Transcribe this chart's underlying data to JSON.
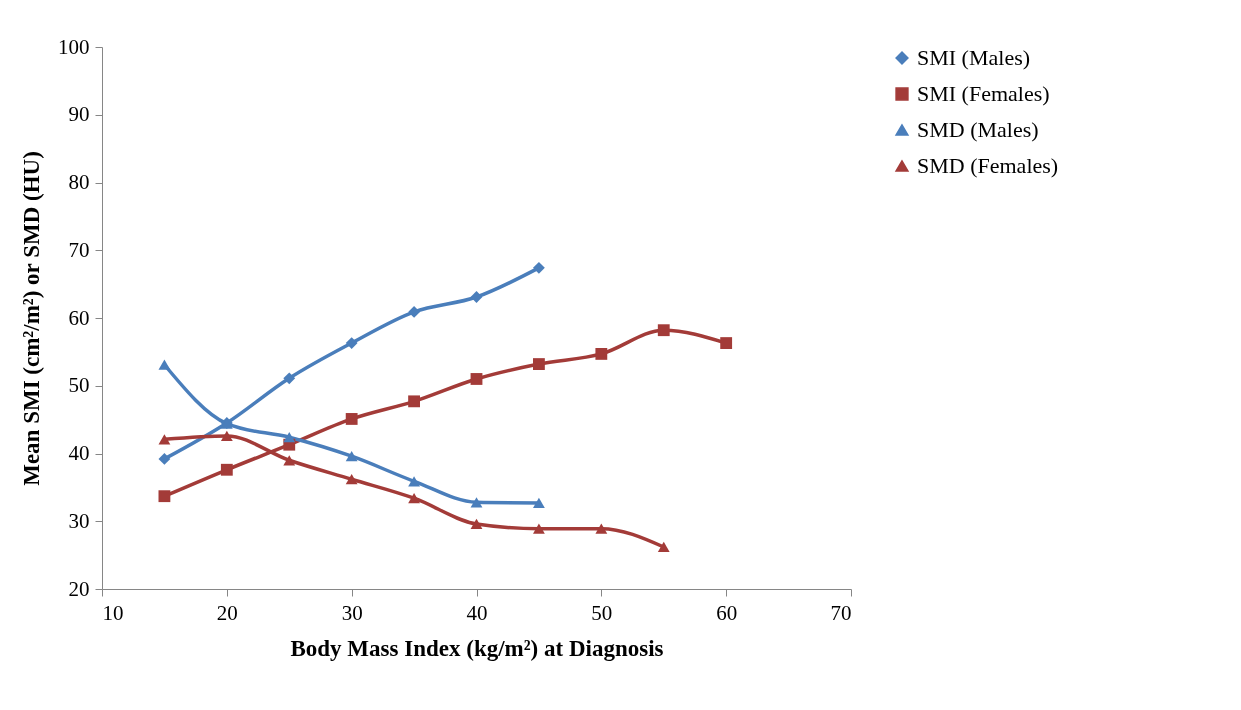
{
  "chart_data": {
    "type": "line",
    "xlabel": "Body Mass Index (kg/m²) at Diagnosis",
    "ylabel": "Mean SMI (cm²/m²) or SMD (HU)",
    "xlim": [
      10,
      70
    ],
    "xticks": [
      10,
      20,
      30,
      40,
      50,
      60,
      70
    ],
    "ylim": [
      20,
      100
    ],
    "yticks": [
      20,
      30,
      40,
      50,
      60,
      70,
      80,
      90,
      100
    ],
    "grid": false,
    "legend": "right",
    "line_style": "solid",
    "series": [
      {
        "name": "SMI (Males)",
        "color": "#4a7ebb",
        "marker": "diamond",
        "x": [
          15,
          20,
          25,
          30,
          35,
          40,
          45
        ],
        "values": [
          39.2,
          44.5,
          51.1,
          56.3,
          60.9,
          63.1,
          67.4
        ]
      },
      {
        "name": "SMI (Females)",
        "color": "#a33b38",
        "marker": "square",
        "x": [
          15,
          20,
          25,
          30,
          35,
          40,
          45,
          50,
          55,
          60
        ],
        "values": [
          33.7,
          37.6,
          41.3,
          45.1,
          47.7,
          51.0,
          53.2,
          54.7,
          58.2,
          56.3
        ]
      },
      {
        "name": "SMD (Males)",
        "color": "#4a7ebb",
        "marker": "triangle",
        "x": [
          15,
          20,
          25,
          30,
          35,
          40,
          45
        ],
        "values": [
          53.1,
          44.4,
          42.4,
          39.6,
          35.9,
          32.8,
          32.7
        ]
      },
      {
        "name": "SMD (Females)",
        "color": "#a33b38",
        "marker": "triangle",
        "x": [
          15,
          20,
          25,
          30,
          35,
          40,
          45,
          50,
          55
        ],
        "values": [
          42.1,
          42.6,
          39.0,
          36.2,
          33.4,
          29.6,
          28.9,
          28.9,
          26.2
        ]
      }
    ]
  }
}
